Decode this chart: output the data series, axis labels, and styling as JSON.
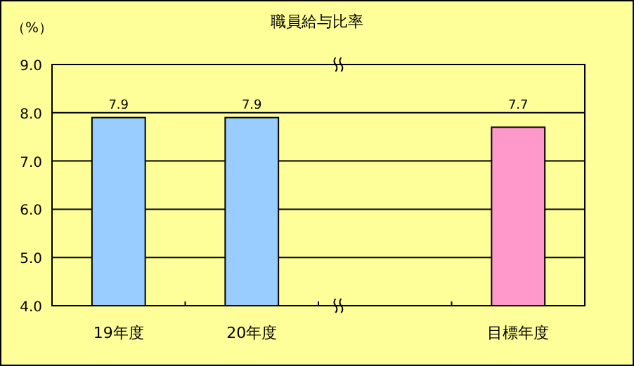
{
  "chart_data": {
    "type": "bar",
    "title": "職員給与比率",
    "ylabel": "（%）",
    "categories": [
      "19年度",
      "20年度",
      null,
      "目標年度"
    ],
    "values": [
      7.9,
      7.9,
      null,
      7.7
    ],
    "colors": [
      "#99ccff",
      "#99ccff",
      null,
      "#ff99cc"
    ],
    "ylim": [
      4,
      9
    ],
    "yticks": [
      {
        "value": 4,
        "label": "4.0"
      },
      {
        "value": 5,
        "label": "5.0"
      },
      {
        "value": 6,
        "label": "6.0"
      },
      {
        "value": 7,
        "label": "7.0"
      },
      {
        "value": 8,
        "label": "8.0"
      },
      {
        "value": 9,
        "label": "9.0"
      }
    ],
    "grid": "y",
    "data_labels": true
  }
}
